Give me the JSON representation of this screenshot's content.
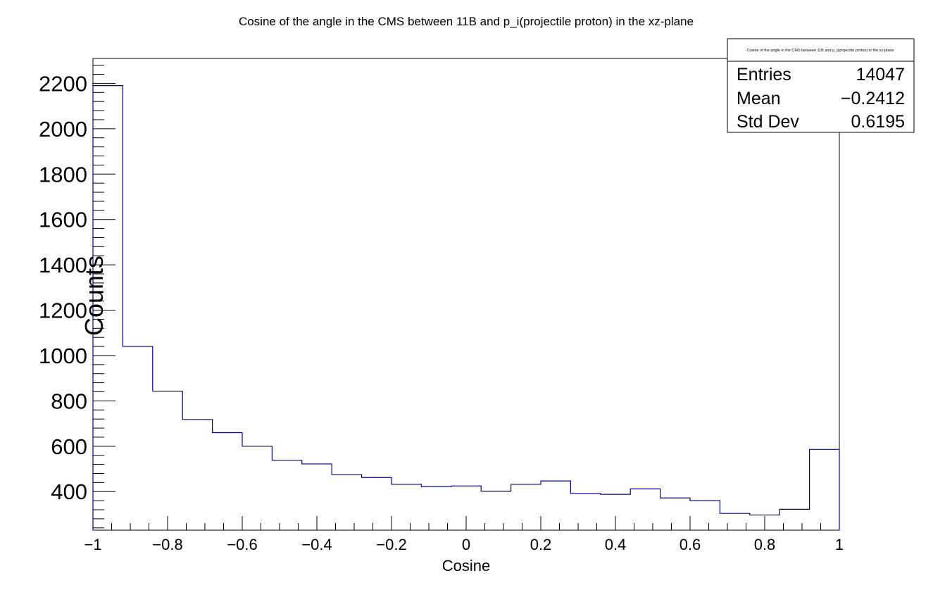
{
  "chart_data": {
    "type": "histogram",
    "title": "Cosine of the angle in the CMS between 11B and p_i(projectile proton) in the xz-plane",
    "xlabel": "Cosine",
    "ylabel": "Counts",
    "xlim": [
      -1,
      1
    ],
    "ylim": [
      230,
      2310
    ],
    "bin_edges": [
      -1,
      -0.92,
      -0.84,
      -0.76,
      -0.68,
      -0.6,
      -0.52,
      -0.44,
      -0.36,
      -0.28,
      -0.2,
      -0.12,
      -0.04,
      0.04,
      0.12,
      0.2,
      0.28,
      0.36,
      0.44,
      0.52,
      0.6,
      0.68,
      0.76,
      0.84,
      0.92,
      1
    ],
    "values": [
      2190,
      1040,
      843,
      718,
      660,
      600,
      538,
      522,
      475,
      462,
      432,
      422,
      425,
      402,
      432,
      447,
      392,
      388,
      412,
      372,
      360,
      304,
      297,
      322,
      586
    ],
    "line_color": "#000099",
    "x_major_ticks": [
      -1,
      -0.8,
      -0.6,
      -0.4,
      -0.2,
      0,
      0.2,
      0.4,
      0.6,
      0.8,
      1
    ],
    "x_tick_labels": [
      "−1",
      "−0.8",
      "−0.6",
      "−0.4",
      "−0.2",
      "0",
      "0.2",
      "0.4",
      "0.6",
      "0.8",
      "1"
    ],
    "y_major_ticks": [
      400,
      600,
      800,
      1000,
      1200,
      1400,
      1600,
      1800,
      2000,
      2200
    ],
    "y_tick_labels": [
      "400",
      "600",
      "800",
      "1000",
      "1200",
      "1400",
      "1600",
      "1800",
      "2000",
      "2200"
    ],
    "grid": false,
    "stats_box": {
      "title": "Cosine of the angle in the CMS between 11B and p_i(projectile proton) in the xz-plane",
      "rows": [
        {
          "label": "Entries",
          "value": "14047"
        },
        {
          "label": "Mean",
          "value": "−0.2412"
        },
        {
          "label": "Std Dev",
          "value": "0.6195"
        }
      ],
      "placement": "top-right"
    }
  }
}
